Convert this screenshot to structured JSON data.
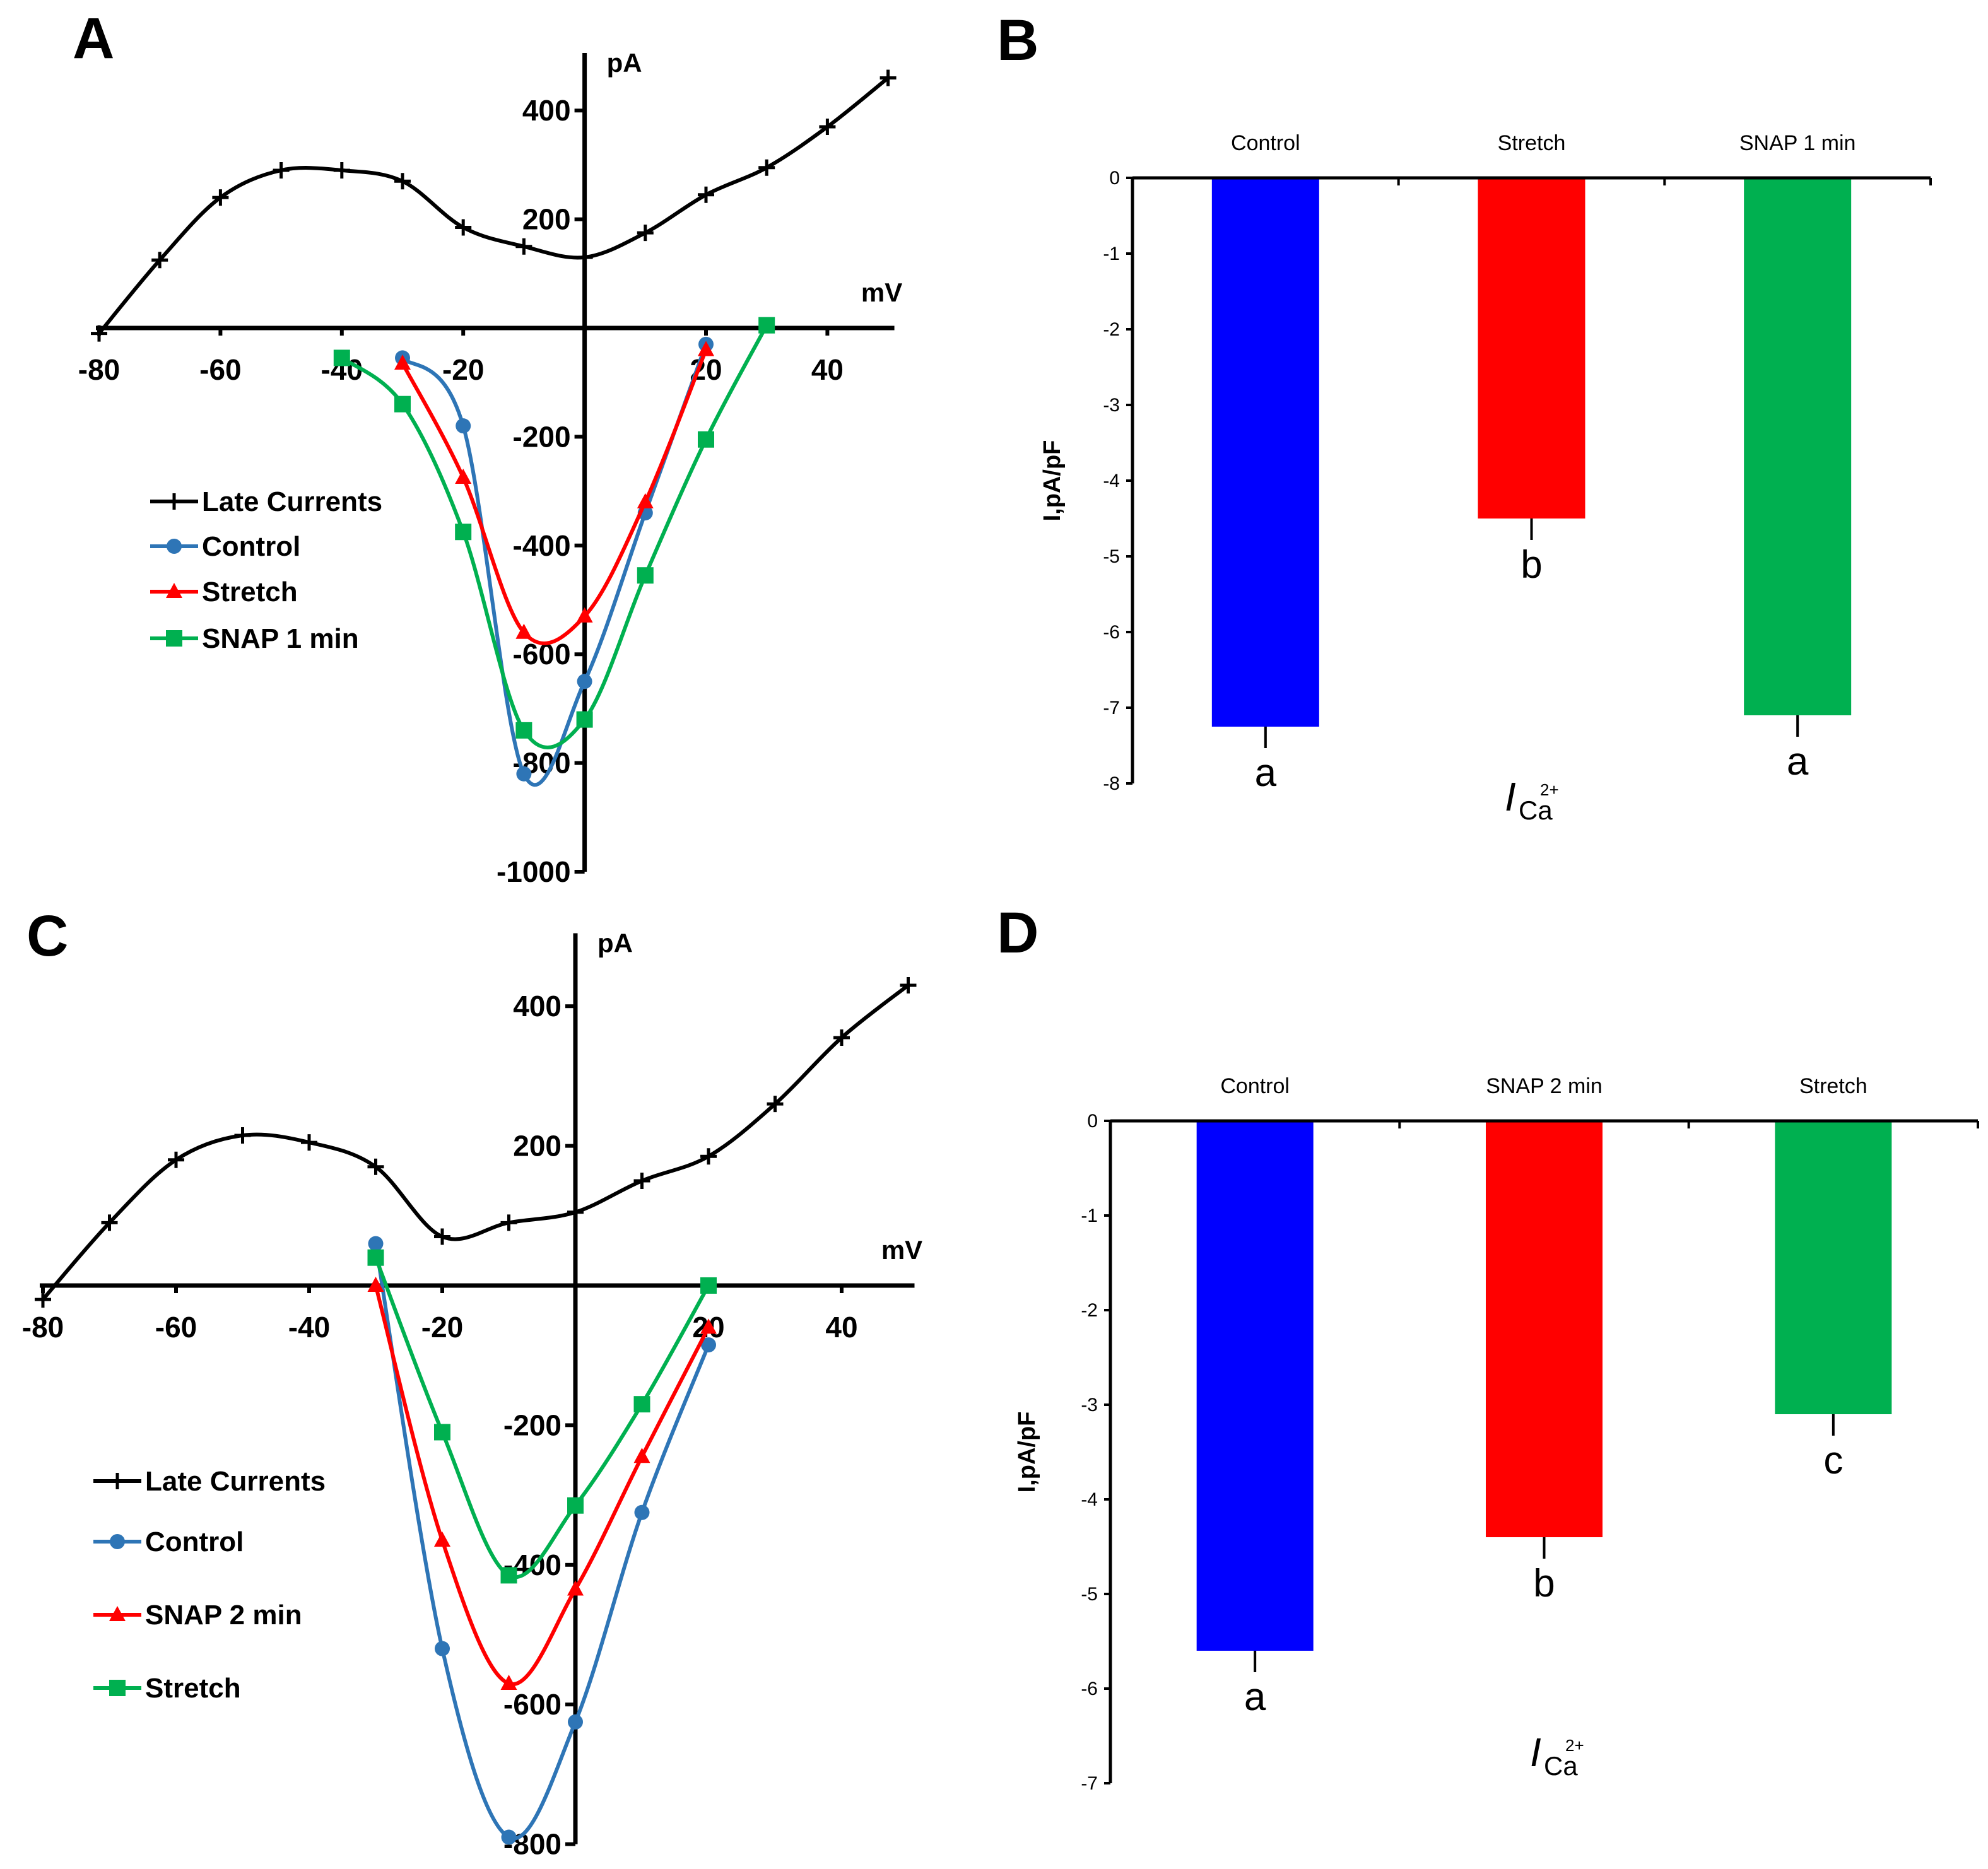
{
  "panel_labels": [
    "A",
    "B",
    "C",
    "D"
  ],
  "chart_data": [
    {
      "panel": "A",
      "type": "line",
      "xlabel": "mV",
      "ylabel": "pA",
      "xlim": [
        -80,
        50
      ],
      "ylim": [
        -1000,
        500
      ],
      "xticks": [
        -80,
        -60,
        -40,
        -20,
        20,
        40
      ],
      "yticks": [
        -1000,
        -800,
        -600,
        -400,
        -200,
        200,
        400
      ],
      "series": [
        {
          "name": "Late Currents",
          "color": "#000000",
          "marker": "plus",
          "x": [
            -80,
            -70,
            -60,
            -50,
            -40,
            -30,
            -20,
            -10,
            0,
            10,
            20,
            30,
            40,
            50
          ],
          "y": [
            -10,
            125,
            240,
            290,
            290,
            270,
            185,
            150,
            130,
            175,
            245,
            295,
            370,
            460
          ]
        },
        {
          "name": "Control",
          "color": "#2E75B6",
          "marker": "circle",
          "x": [
            -30,
            -20,
            -10,
            0,
            10,
            20
          ],
          "y": [
            -55,
            -180,
            -820,
            -650,
            -340,
            -30
          ]
        },
        {
          "name": "Stretch",
          "color": "#FF0000",
          "marker": "triangle",
          "x": [
            -30,
            -20,
            -10,
            0,
            10,
            20
          ],
          "y": [
            -65,
            -275,
            -560,
            -530,
            -320,
            -40
          ]
        },
        {
          "name": "SNAP 1 min",
          "color": "#00B050",
          "marker": "square",
          "x": [
            -40,
            -30,
            -20,
            -10,
            0,
            10,
            20,
            30
          ],
          "y": [
            -55,
            -140,
            -375,
            -740,
            -720,
            -455,
            -205,
            5
          ]
        }
      ]
    },
    {
      "panel": "B",
      "type": "bar",
      "categories": [
        "Control",
        "Stretch",
        "SNAP 1 min"
      ],
      "values": [
        -7.25,
        -4.5,
        -7.1
      ],
      "colors": [
        "#0000FF",
        "#FF0000",
        "#00B050"
      ],
      "significance": [
        "a",
        "b",
        "a"
      ],
      "ylabel": "I,pA/pF",
      "xlabel_main": "I",
      "xlabel_sub": "Ca",
      "xlabel_sup": "2+",
      "ylim": [
        -8,
        0
      ],
      "yticks": [
        0,
        -1,
        -2,
        -3,
        -4,
        -5,
        -6,
        -7,
        -8
      ]
    },
    {
      "panel": "C",
      "type": "line",
      "xlabel": "mV",
      "ylabel": "pA",
      "xlim": [
        -80,
        50
      ],
      "ylim": [
        -800,
        500
      ],
      "xticks": [
        -80,
        -60,
        -40,
        -20,
        20,
        40
      ],
      "yticks": [
        -800,
        -600,
        -400,
        -200,
        200,
        400
      ],
      "series": [
        {
          "name": "Late Currents",
          "color": "#000000",
          "marker": "plus",
          "x": [
            -80,
            -70,
            -60,
            -50,
            -40,
            -30,
            -20,
            -10,
            0,
            10,
            20,
            30,
            40,
            50
          ],
          "y": [
            -20,
            90,
            180,
            215,
            205,
            170,
            70,
            90,
            105,
            150,
            185,
            260,
            355,
            430
          ]
        },
        {
          "name": "Control",
          "color": "#2E75B6",
          "marker": "circle",
          "x": [
            -30,
            -20,
            -10,
            0,
            10,
            20
          ],
          "y": [
            60,
            -520,
            -790,
            -625,
            -325,
            -85
          ]
        },
        {
          "name": "SNAP 2 min",
          "color": "#FF0000",
          "marker": "triangle",
          "x": [
            -30,
            -20,
            -10,
            0,
            10,
            20
          ],
          "y": [
            0,
            -365,
            -570,
            -435,
            -245,
            -60
          ]
        },
        {
          "name": "Stretch",
          "color": "#00B050",
          "marker": "square",
          "x": [
            -30,
            -20,
            -10,
            0,
            10,
            20
          ],
          "y": [
            40,
            -210,
            -415,
            -315,
            -170,
            0
          ]
        }
      ]
    },
    {
      "panel": "D",
      "type": "bar",
      "categories": [
        "Control",
        "SNAP 2 min",
        "Stretch"
      ],
      "values": [
        -5.6,
        -4.4,
        -3.1
      ],
      "colors": [
        "#0000FF",
        "#FF0000",
        "#00B050"
      ],
      "significance": [
        "a",
        "b",
        "c"
      ],
      "ylabel": "I,pA/pF",
      "xlabel_main": "I",
      "xlabel_sub": "Ca",
      "xlabel_sup": "2+",
      "ylim": [
        -7,
        0
      ],
      "yticks": [
        0,
        -1,
        -2,
        -3,
        -4,
        -5,
        -6,
        -7
      ]
    }
  ]
}
